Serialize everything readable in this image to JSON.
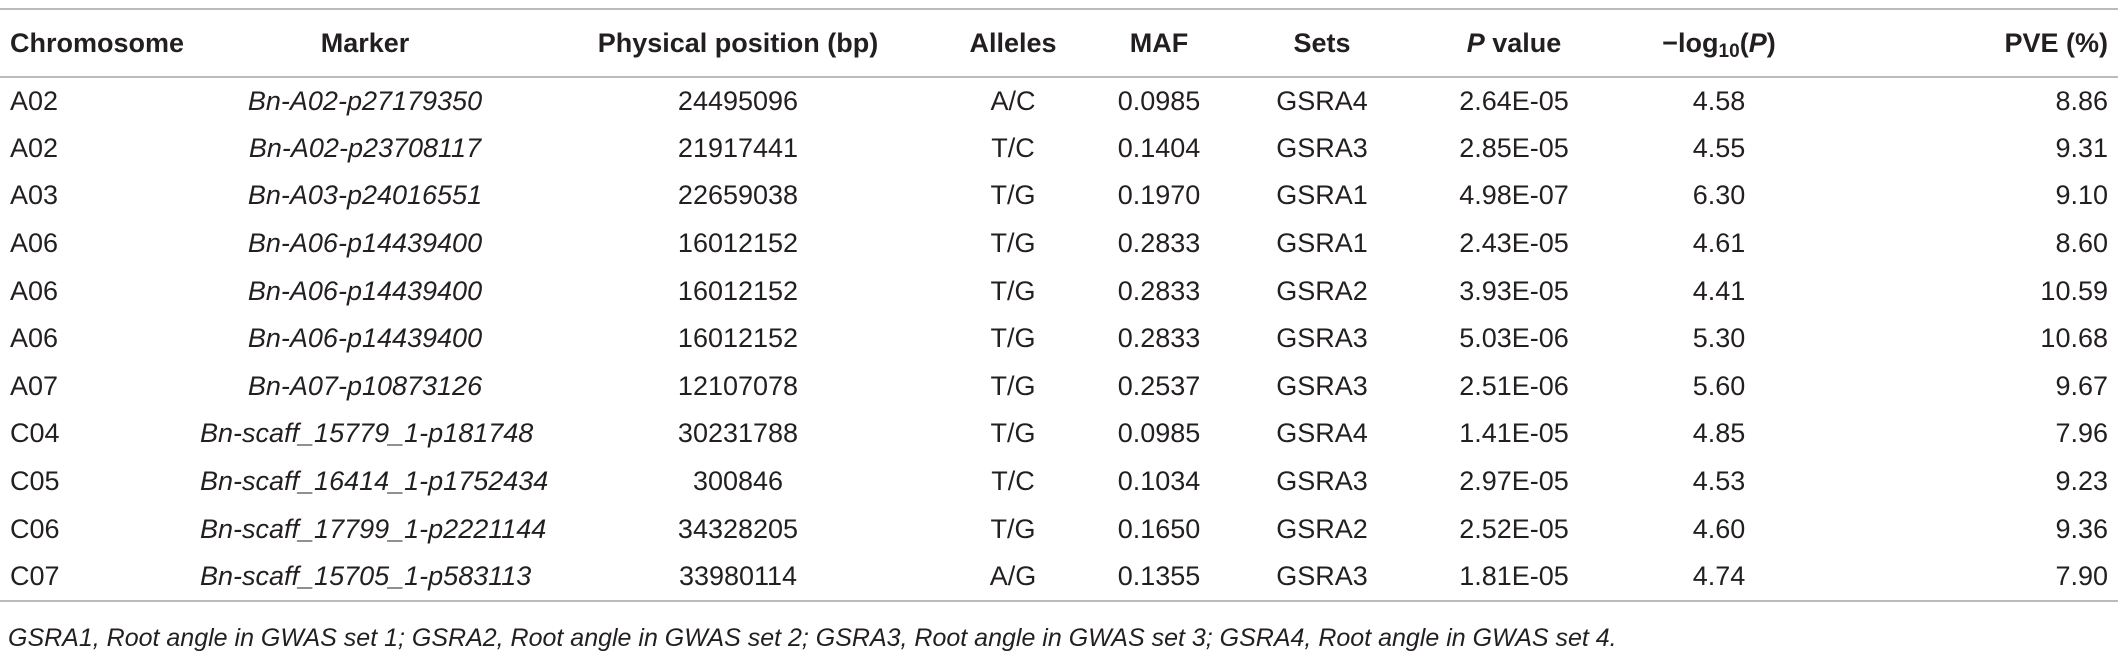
{
  "headers": {
    "chromosome": "Chromosome",
    "marker": "Marker",
    "position": "Physical position (bp)",
    "alleles": "Alleles",
    "maf": "MAF",
    "sets": "Sets",
    "pvalue_p": "P",
    "pvalue_rest": " value",
    "log_prefix": "−log",
    "log_sub": "10",
    "log_open": "(",
    "log_p": "P",
    "log_close": ")",
    "pve": "PVE (%)"
  },
  "rows": [
    {
      "chromosome": "A02",
      "marker": "Bn-A02-p27179350",
      "position": "24495096",
      "alleles": "A/C",
      "maf": "0.0985",
      "sets": "GSRA4",
      "pvalue": "2.64E-05",
      "log": "4.58",
      "pve": "8.86"
    },
    {
      "chromosome": "A02",
      "marker": "Bn-A02-p23708117",
      "position": "21917441",
      "alleles": "T/C",
      "maf": "0.1404",
      "sets": "GSRA3",
      "pvalue": "2.85E-05",
      "log": "4.55",
      "pve": "9.31"
    },
    {
      "chromosome": "A03",
      "marker": "Bn-A03-p24016551",
      "position": "22659038",
      "alleles": "T/G",
      "maf": "0.1970",
      "sets": "GSRA1",
      "pvalue": "4.98E-07",
      "log": "6.30",
      "pve": "9.10"
    },
    {
      "chromosome": "A06",
      "marker": "Bn-A06-p14439400",
      "position": "16012152",
      "alleles": "T/G",
      "maf": "0.2833",
      "sets": "GSRA1",
      "pvalue": "2.43E-05",
      "log": "4.61",
      "pve": "8.60"
    },
    {
      "chromosome": "A06",
      "marker": "Bn-A06-p14439400",
      "position": "16012152",
      "alleles": "T/G",
      "maf": "0.2833",
      "sets": "GSRA2",
      "pvalue": "3.93E-05",
      "log": "4.41",
      "pve": "10.59"
    },
    {
      "chromosome": "A06",
      "marker": "Bn-A06-p14439400",
      "position": "16012152",
      "alleles": "T/G",
      "maf": "0.2833",
      "sets": "GSRA3",
      "pvalue": "5.03E-06",
      "log": "5.30",
      "pve": "10.68"
    },
    {
      "chromosome": "A07",
      "marker": "Bn-A07-p10873126",
      "position": "12107078",
      "alleles": "T/G",
      "maf": "0.2537",
      "sets": "GSRA3",
      "pvalue": "2.51E-06",
      "log": "5.60",
      "pve": "9.67"
    },
    {
      "chromosome": "C04",
      "marker": "Bn-scaff_15779_1-p181748",
      "position": "30231788",
      "alleles": "T/G",
      "maf": "0.0985",
      "sets": "GSRA4",
      "pvalue": "1.41E-05",
      "log": "4.85",
      "pve": "7.96"
    },
    {
      "chromosome": "C05",
      "marker": "Bn-scaff_16414_1-p1752434",
      "position": "300846",
      "alleles": "T/C",
      "maf": "0.1034",
      "sets": "GSRA3",
      "pvalue": "2.97E-05",
      "log": "4.53",
      "pve": "9.23"
    },
    {
      "chromosome": "C06",
      "marker": "Bn-scaff_17799_1-p2221144",
      "position": "34328205",
      "alleles": "T/G",
      "maf": "0.1650",
      "sets": "GSRA2",
      "pvalue": "2.52E-05",
      "log": "4.60",
      "pve": "9.36"
    },
    {
      "chromosome": "C07",
      "marker": "Bn-scaff_15705_1-p583113",
      "position": "33980114",
      "alleles": "A/G",
      "maf": "0.1355",
      "sets": "GSRA3",
      "pvalue": "1.81E-05",
      "log": "4.74",
      "pve": "7.90"
    }
  ],
  "footnote": "GSRA1, Root angle in GWAS set 1; GSRA2, Root angle in GWAS set 2; GSRA3, Root angle in GWAS set 3; GSRA4, Root angle in GWAS set 4."
}
